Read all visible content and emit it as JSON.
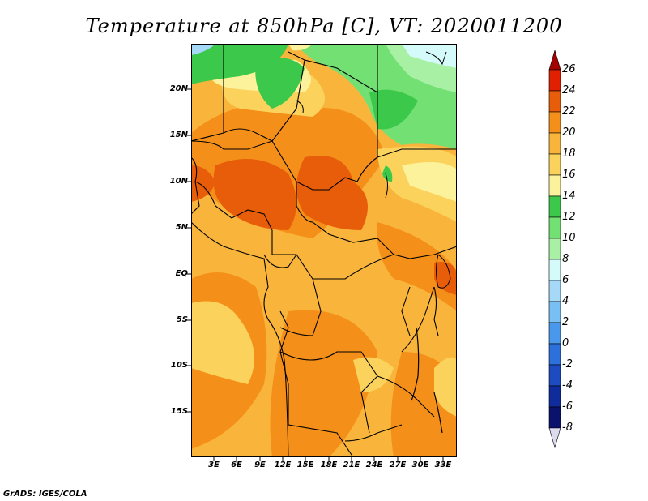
{
  "title": "Temperature at 850hPa [C], VT: 2020011200",
  "credit": "GrADS: IGES/COLA",
  "map": {
    "region": "Central Africa",
    "lat_ticks": [
      "20N",
      "15N",
      "10N",
      "5N",
      "EQ",
      "5S",
      "10S",
      "15S"
    ],
    "lon_ticks": [
      "3E",
      "6E",
      "9E",
      "12E",
      "15E",
      "18E",
      "21E",
      "24E",
      "27E",
      "30E",
      "33E"
    ],
    "legend_colors": {
      "dark_orange": "#e85d0a",
      "orange": "#f4901a",
      "light_orange": "#f9b53b",
      "yellow_orange": "#fbd35c",
      "pale_yellow": "#fdf29c",
      "green_dark": "#3cc84a",
      "green": "#72e072",
      "green_light": "#a8f0a4",
      "cyan_light": "#d4fafa",
      "blue_light": "#a6d8f8"
    }
  },
  "colorbar": {
    "labels": [
      "26",
      "24",
      "22",
      "20",
      "18",
      "16",
      "14",
      "12",
      "10",
      "8",
      "6",
      "4",
      "2",
      "0",
      "-2",
      "-4",
      "-6",
      "-8"
    ],
    "colors": [
      "#a50000",
      "#e02000",
      "#e85d0a",
      "#f4901a",
      "#f9b53b",
      "#fbd35c",
      "#fdf29c",
      "#3cc84a",
      "#72e072",
      "#a8f0a4",
      "#d4fafa",
      "#a6d8f8",
      "#78c0f4",
      "#4a98ec",
      "#2c70dc",
      "#1c4cc0",
      "#102c9c",
      "#0a126c",
      "#dcdcf0"
    ]
  }
}
